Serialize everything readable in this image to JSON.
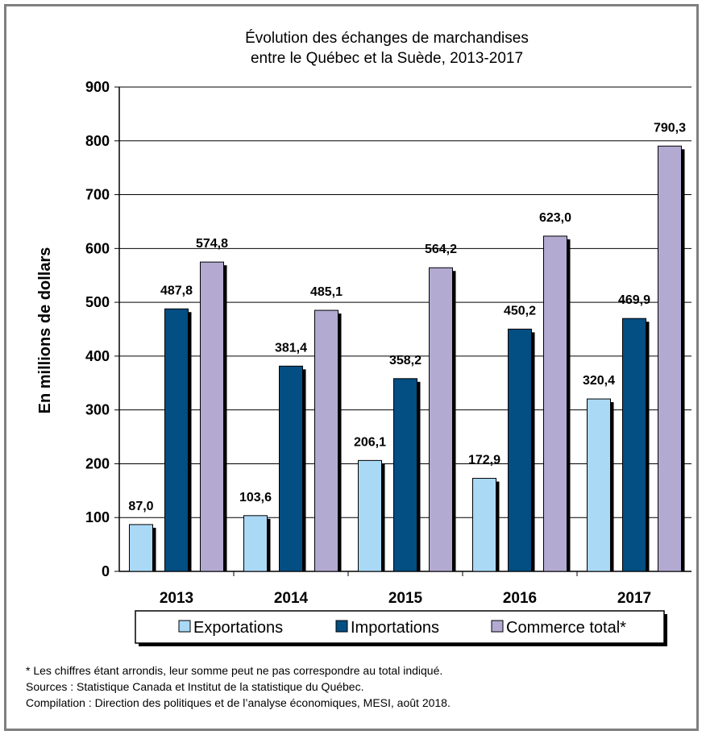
{
  "chart_data": {
    "type": "bar",
    "title_lines": [
      "Évolution des échanges de marchandises",
      "entre le Québec et la Suède, 2013-2017"
    ],
    "ylabel": "En millions de dollars",
    "xlabel": "",
    "categories": [
      "2013",
      "2014",
      "2015",
      "2016",
      "2017"
    ],
    "ylim": [
      0,
      900
    ],
    "yticks": [
      0,
      100,
      200,
      300,
      400,
      500,
      600,
      700,
      800,
      900
    ],
    "grid": true,
    "legend_position": "bottom",
    "series": [
      {
        "name": "Exportations",
        "color": "#aad9f5",
        "values": [
          87.0,
          103.6,
          206.1,
          172.9,
          320.4
        ],
        "labels": [
          "87,0",
          "103,6",
          "206,1",
          "172,9",
          "320,4"
        ]
      },
      {
        "name": "Importations",
        "color": "#034e82",
        "values": [
          487.8,
          381.4,
          358.2,
          450.2,
          469.9
        ],
        "labels": [
          "487,8",
          "381,4",
          "358,2",
          "450,2",
          "469,9"
        ]
      },
      {
        "name": "Commerce total*",
        "color": "#b3aad2",
        "values": [
          574.8,
          485.1,
          564.2,
          623.0,
          790.3
        ],
        "labels": [
          "574,8",
          "485,1",
          "564,2",
          "623,0",
          "790,3"
        ]
      }
    ]
  },
  "footnotes": {
    "note": "* Les chiffres étant arrondis, leur somme peut ne pas correspondre au total indiqué.",
    "sources": "Sources : Statistique Canada et Institut de la statistique du Québec.",
    "compilation": "Compilation : Direction des politiques et de l’analyse économiques, MESI, août 2018."
  }
}
